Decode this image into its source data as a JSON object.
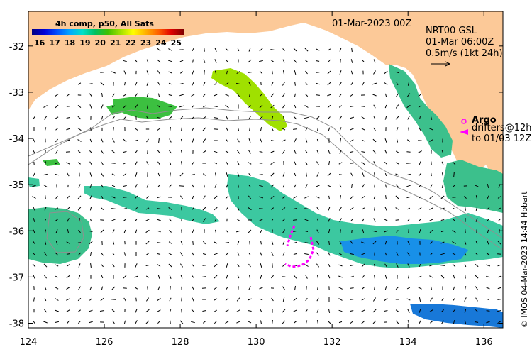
{
  "map": {
    "title": "4h comp, p50, All Sats",
    "date": "01-Mar-2023 00Z",
    "product": "NRT00 GSL",
    "product_time": "01-Mar 06:00Z",
    "vector_scale": "0.5m/s (1kt 24h)",
    "legend": {
      "argo": "Argo",
      "drifters_1": "drifters@12h",
      "drifters_2": "to 01/03 12Z"
    },
    "credit": "© IMOS 04-Mar-2023 14:44 Hobart",
    "colorbar": {
      "ticks": [
        "16",
        "17",
        "18",
        "19",
        "20",
        "21",
        "22",
        "23",
        "24",
        "25"
      ],
      "min": 15.5,
      "max": 25.5,
      "colors": [
        "#000080",
        "#0000d8",
        "#0050ff",
        "#00a8ff",
        "#00e0c8",
        "#00c060",
        "#40c000",
        "#a0e000",
        "#ffff00",
        "#ffb000",
        "#ff6000",
        "#e00000",
        "#800000"
      ]
    },
    "axes": {
      "lon_ticks": [
        124,
        126,
        128,
        130,
        132,
        134,
        136
      ],
      "lat_ticks": [
        -32,
        -33,
        -34,
        -35,
        -36,
        -37,
        -38
      ],
      "lon_min": 124,
      "lon_max": 136.5,
      "lat_min": -38.1,
      "lat_max": -31.25
    },
    "colors": {
      "land": "#fcc998",
      "sst_green": "#3cc04c",
      "sst_teal": "#3cc8a0",
      "sst_blue": "#1890e8",
      "sst_yellowgreen": "#a0e000",
      "drifter_magenta": "#ff00ff",
      "bathymetry": "#909090"
    }
  }
}
